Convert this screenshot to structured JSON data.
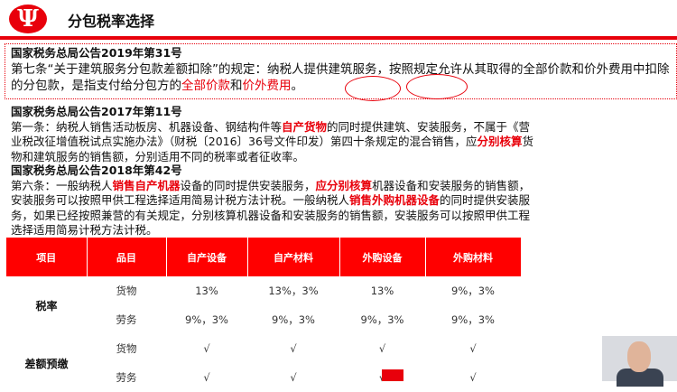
{
  "header": {
    "logo": "Ψ",
    "title": "分包税率选择"
  },
  "s1": {
    "heading": "国家税务总局公告2019年第31号",
    "text1": "第七条“关于建筑服务分包款差额扣除”的规定：纳税人提供建筑服务，按照规定允许从其取得的全部价款和价外费用中扣除的分包款，是指支付给分包方的",
    "hl1": "全部价款",
    "mid": "和",
    "hl2": "价外费用",
    "end": "。"
  },
  "s2": {
    "heading": "国家税务总局公告2017年第11号",
    "t1": "第一条：纳税人销售活动板房、机器设备、钢结构件等",
    "h1": "自产货物",
    "t2": "的同时提供建筑、安装服务，不属于《营业税改征增值税试点实施办法》（财税〔2016〕36号文件印发）第四十条规定的混合销售，应",
    "h2": "分别核算",
    "t3": "货物和建筑服务的销售额，分别适用不同的税率或者征收率。"
  },
  "s3": {
    "heading": "国家税务总局公告2018年第42号",
    "t1": "第六条：一般纳税人",
    "h1": "销售自产机器",
    "t2": "设备的同时提供安装服务，",
    "h2": "应分别核算",
    "t3": "机器设备和安装服务的销售额，安装服务可以按照甲供工程选择适用简易计税方法计税。一般纳税人",
    "h3": "销售外购机器设备",
    "t4": "的同时提供安装服务，如果已经按照兼营的有关规定，分别核算机器设备和安装服务的销售额，安装服务可以按照甲供工程选择适用简易计税方法计税。"
  },
  "table": {
    "headers": [
      "项目",
      "品目",
      "自产设备",
      "自产材料",
      "外购设备",
      "外购材料"
    ],
    "groups": [
      {
        "label": "税率",
        "rows": [
          {
            "item": "货物",
            "cells": [
              "13%",
              "13%，3%",
              "13%",
              "9%，3%"
            ]
          },
          {
            "item": "劳务",
            "cells": [
              "9%，3%",
              "9%，3%",
              "9%，3%",
              "9%，3%"
            ]
          }
        ]
      },
      {
        "label": "差额预缴",
        "rows": [
          {
            "item": "货物",
            "cells": [
              "√",
              "√",
              "√",
              "√"
            ]
          },
          {
            "item": "劳务",
            "cells": [
              "√",
              "√",
              "√",
              "√"
            ]
          }
        ]
      }
    ]
  }
}
